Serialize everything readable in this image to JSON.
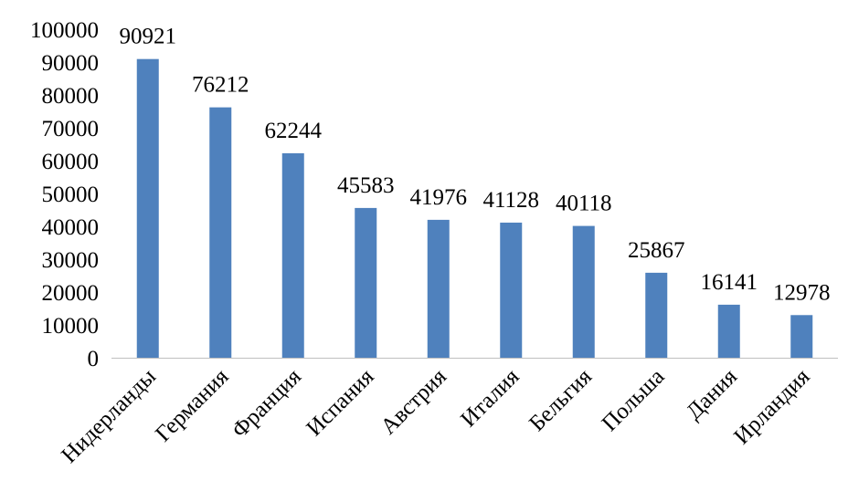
{
  "chart_data": {
    "type": "bar",
    "categories": [
      "Нидерланды",
      "Германия",
      "Франция",
      "Испания",
      "Австрия",
      "Италия",
      "Бельгия",
      "Польша",
      "Дания",
      "Ирландия"
    ],
    "values": [
      90921,
      76212,
      62244,
      45583,
      41976,
      41128,
      40118,
      25867,
      16141,
      12978
    ],
    "data_labels": [
      "90921",
      "76212",
      "62244",
      "45583",
      "41976",
      "41128",
      "40118",
      "25867",
      "16141",
      "12978"
    ],
    "y_ticks": [
      "0",
      "10000",
      "20000",
      "30000",
      "40000",
      "50000",
      "60000",
      "70000",
      "80000",
      "90000",
      "100000"
    ],
    "ylim": [
      0,
      100000
    ],
    "grid": false,
    "legend": "none",
    "bar_color": "#4f81bd",
    "axis_color": "#bfbfbf"
  }
}
